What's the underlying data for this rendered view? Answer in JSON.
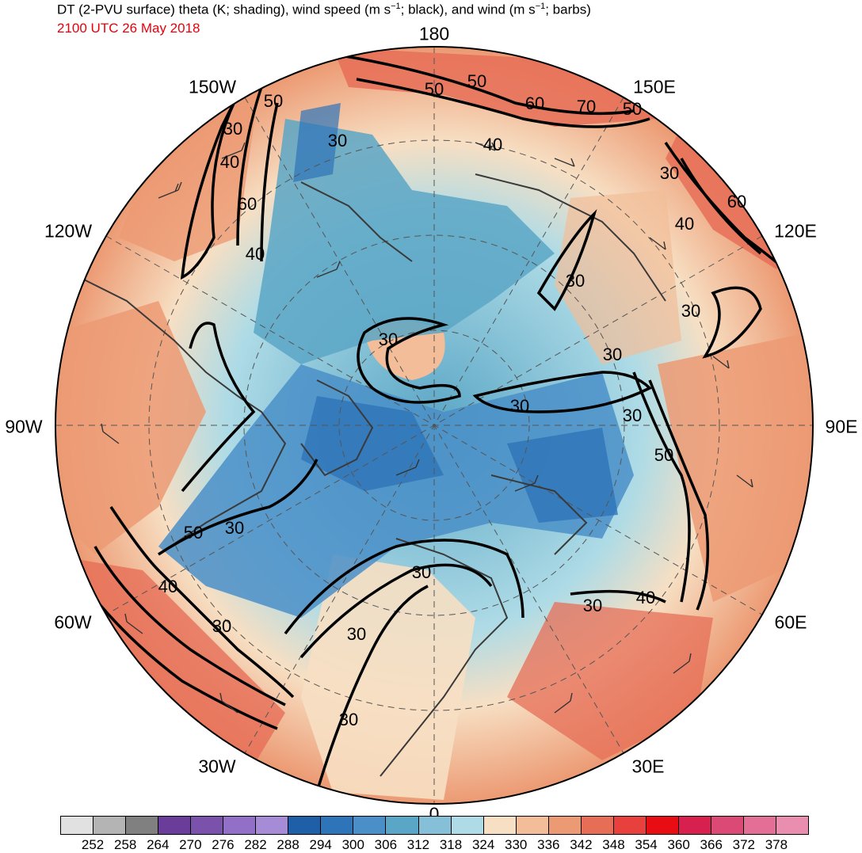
{
  "header": {
    "title_prefix": "DT (2-PVU surface) theta (K; shading), wind speed (m s",
    "title_mid": "; black), and wind (m s",
    "title_suffix": "; barbs)",
    "exponent": "−1",
    "valid_time": "2100 UTC 26 May 2018"
  },
  "longitude_labels": {
    "top": "180",
    "upper_left": "150W",
    "upper_right": "150E",
    "left_upper": "120W",
    "right_upper": "120E",
    "left": "90W",
    "right": "90E",
    "left_lower": "60W",
    "right_lower": "60E",
    "lower_left": "30W",
    "lower_right": "30E",
    "bottom": "0"
  },
  "wind_speed_contour_labels": [
    "50",
    "50",
    "60",
    "70",
    "50",
    "30",
    "40",
    "60",
    "40",
    "30",
    "40",
    "30",
    "30",
    "30",
    "30",
    "30",
    "50",
    "30",
    "50",
    "30",
    "50",
    "40",
    "30",
    "30",
    "40",
    "60",
    "30",
    "30",
    "30",
    "40",
    "30"
  ],
  "colorbar": {
    "units": "K",
    "colors": [
      "#e1e1e1",
      "#b4b4b4",
      "#808080",
      "#6a3d9a",
      "#7b52ab",
      "#9370c8",
      "#a68bd6",
      "#1f5fa8",
      "#2e74b8",
      "#4a8fc8",
      "#5aa6c6",
      "#86bfd8",
      "#aedbe6",
      "#f7dfc3",
      "#f2bd98",
      "#ec9a73",
      "#e66e57",
      "#e8413d",
      "#e80d13",
      "#d8204f",
      "#db4a76",
      "#e36e96",
      "#e98eaf"
    ],
    "tick_labels": [
      "252",
      "258",
      "264",
      "270",
      "276",
      "282",
      "288",
      "294",
      "300",
      "306",
      "312",
      "318",
      "324",
      "330",
      "336",
      "342",
      "348",
      "354",
      "360",
      "366",
      "372",
      "378"
    ]
  },
  "map_colors": {
    "warm": "#ec9a73",
    "warm_light": "#f7dfc3",
    "warm_strong": "#e66e57",
    "cold_light": "#aedbe6",
    "cold": "#5aa6c6",
    "cold_strong": "#2e74b8",
    "contour": "#000000",
    "coast": "#3a3a3a"
  }
}
